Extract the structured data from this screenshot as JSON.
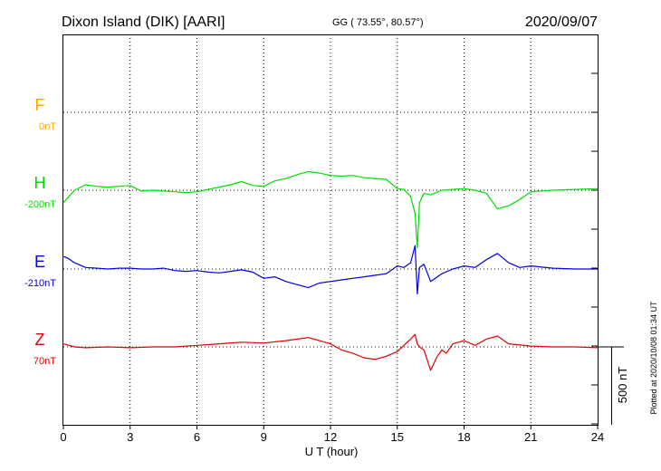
{
  "header": {
    "station": "Dixon Island (DIK)  [AARI]",
    "coords": "GG ( 73.55°,  80.57°)",
    "date": "2020/09/07"
  },
  "xaxis": {
    "label": "U T (hour)",
    "ticks": [
      "0",
      "3",
      "6",
      "9",
      "12",
      "15",
      "18",
      "21",
      "24"
    ]
  },
  "scale_label": "500 nT",
  "plotted_note": "Plotted at 2020/10/08 01:34 UT",
  "components": [
    {
      "name": "F",
      "baseline": "0nT",
      "color": "#ffa500"
    },
    {
      "name": "H",
      "baseline": "-200nT",
      "color": "#00e000"
    },
    {
      "name": "E",
      "baseline": "-210nT",
      "color": "#0000e0"
    },
    {
      "name": "Z",
      "baseline": "70nT",
      "color": "#e00000"
    }
  ],
  "chart_data": {
    "type": "line",
    "title": "Dixon Island (DIK)  [AARI]",
    "xlabel": "U T (hour)",
    "xlim": [
      0,
      24
    ],
    "x_ticks": [
      0,
      3,
      6,
      9,
      12,
      15,
      18,
      21,
      24
    ],
    "grid": true,
    "units": "nT",
    "scale_bar_nT": 500,
    "series": [
      {
        "name": "H",
        "color": "#00e000",
        "baseline_nT": -200,
        "x": [
          0,
          0.5,
          1,
          1.5,
          2,
          2.5,
          3,
          3.5,
          4,
          4.5,
          5,
          5.5,
          6,
          6.5,
          7,
          7.5,
          8,
          8.5,
          9,
          9.5,
          10,
          10.5,
          11,
          11.5,
          12,
          12.5,
          13,
          13.5,
          14,
          14.5,
          15,
          15.3,
          15.6,
          15.8,
          15.9,
          16.0,
          16.2,
          16.5,
          17,
          17.5,
          18,
          18.5,
          19,
          19.5,
          20,
          20.5,
          21,
          22,
          23,
          24
        ],
        "values": [
          -80,
          0,
          35,
          25,
          20,
          25,
          30,
          -5,
          0,
          -5,
          -10,
          -15,
          -10,
          5,
          20,
          35,
          55,
          30,
          25,
          60,
          75,
          100,
          120,
          110,
          95,
          90,
          95,
          80,
          75,
          70,
          10,
          5,
          -40,
          -150,
          -370,
          -80,
          -20,
          -30,
          0,
          5,
          10,
          0,
          -20,
          -120,
          -100,
          -60,
          -10,
          0,
          5,
          10
        ]
      },
      {
        "name": "E",
        "color": "#0000e0",
        "baseline_nT": -210,
        "x": [
          0,
          0.2,
          0.5,
          1,
          1.5,
          2,
          2.5,
          3,
          3.5,
          4,
          4.5,
          5,
          5.5,
          6,
          6.5,
          7,
          7.5,
          8,
          8.5,
          9,
          9.5,
          10,
          10.5,
          11,
          11.5,
          12,
          12.5,
          13,
          13.5,
          14,
          14.5,
          15,
          15.3,
          15.6,
          15.8,
          15.9,
          16.0,
          16.2,
          16.5,
          17,
          17.5,
          18,
          18.5,
          19,
          19.5,
          20,
          20.5,
          21,
          22,
          23,
          24
        ],
        "values": [
          80,
          70,
          40,
          10,
          5,
          0,
          5,
          5,
          0,
          0,
          5,
          -10,
          -15,
          -10,
          -20,
          -25,
          -15,
          -5,
          -20,
          -60,
          -50,
          -80,
          -100,
          -120,
          -90,
          -80,
          -70,
          -60,
          -50,
          -40,
          -30,
          20,
          10,
          40,
          150,
          -160,
          10,
          30,
          -80,
          -30,
          0,
          20,
          10,
          60,
          100,
          40,
          10,
          20,
          5,
          0,
          0
        ]
      },
      {
        "name": "Z",
        "color": "#e00000",
        "baseline_nT": 70,
        "x": [
          0,
          0.5,
          1,
          2,
          3,
          4,
          5,
          6,
          7,
          8,
          9,
          10,
          10.5,
          11,
          11.5,
          12,
          12.5,
          13,
          13.5,
          14,
          14.5,
          15,
          15.3,
          15.6,
          15.8,
          15.9,
          16.0,
          16.2,
          16.5,
          16.8,
          17,
          17.2,
          17.5,
          18,
          18.5,
          19,
          19.5,
          20,
          21,
          22,
          23,
          24
        ],
        "values": [
          20,
          0,
          -5,
          0,
          -5,
          0,
          0,
          10,
          20,
          30,
          25,
          40,
          50,
          60,
          40,
          20,
          -20,
          -40,
          -70,
          -80,
          -60,
          -30,
          10,
          50,
          80,
          20,
          0,
          -20,
          -150,
          -60,
          -20,
          -40,
          20,
          40,
          10,
          50,
          70,
          20,
          5,
          0,
          0,
          -5
        ]
      }
    ]
  }
}
